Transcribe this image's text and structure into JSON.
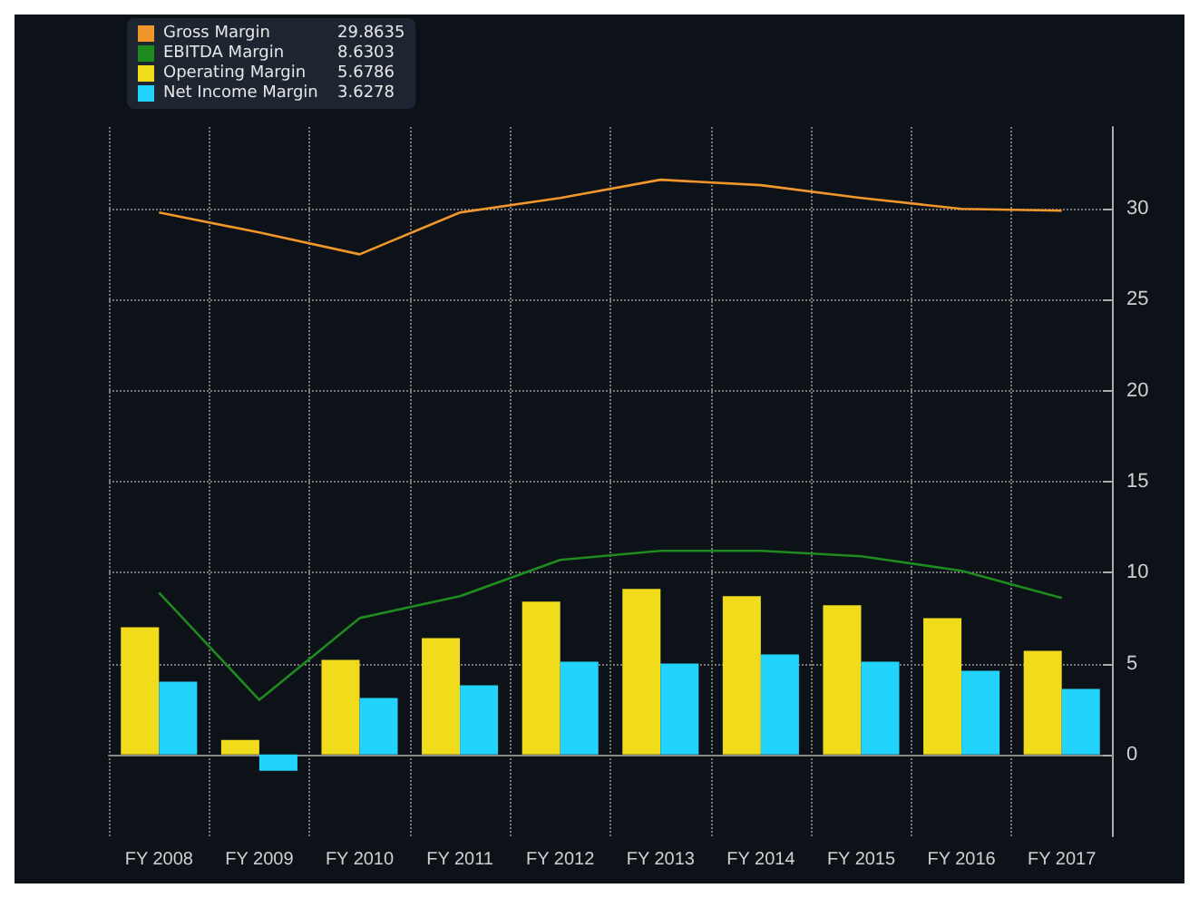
{
  "chart_data": {
    "type": "bar",
    "categories": [
      "FY 2008",
      "FY 2009",
      "FY 2010",
      "FY 2011",
      "FY 2012",
      "FY 2013",
      "FY 2014",
      "FY 2015",
      "FY 2016",
      "FY 2017"
    ],
    "series": [
      {
        "name": "Gross Margin",
        "type": "line",
        "color": "#f0962a",
        "values": [
          29.8,
          28.7,
          27.5,
          29.8,
          30.6,
          31.6,
          31.3,
          30.6,
          30.0,
          29.9
        ]
      },
      {
        "name": "EBITDA Margin",
        "type": "line",
        "color": "#1f8a1f",
        "values": [
          8.9,
          3.0,
          7.5,
          8.7,
          10.7,
          11.2,
          11.2,
          10.9,
          10.1,
          8.6
        ]
      },
      {
        "name": "Operating Margin",
        "color": "#f0dc1a",
        "values": [
          7.0,
          0.8,
          5.2,
          6.4,
          8.4,
          9.1,
          8.7,
          8.2,
          7.5,
          5.7
        ]
      },
      {
        "name": "Net Income Margin",
        "color": "#22d4fb",
        "values": [
          4.0,
          -0.9,
          3.1,
          3.8,
          5.1,
          5.0,
          5.5,
          5.1,
          4.6,
          3.6
        ]
      }
    ],
    "annotations": [
      "29.8635",
      "8.6303",
      "5.6786",
      "3.6278"
    ],
    "ylim": [
      -4.5,
      34.5
    ],
    "yticks": [
      0,
      5,
      10,
      15,
      20,
      25,
      30
    ],
    "grid": true,
    "legend": "top left",
    "marker": "none"
  }
}
